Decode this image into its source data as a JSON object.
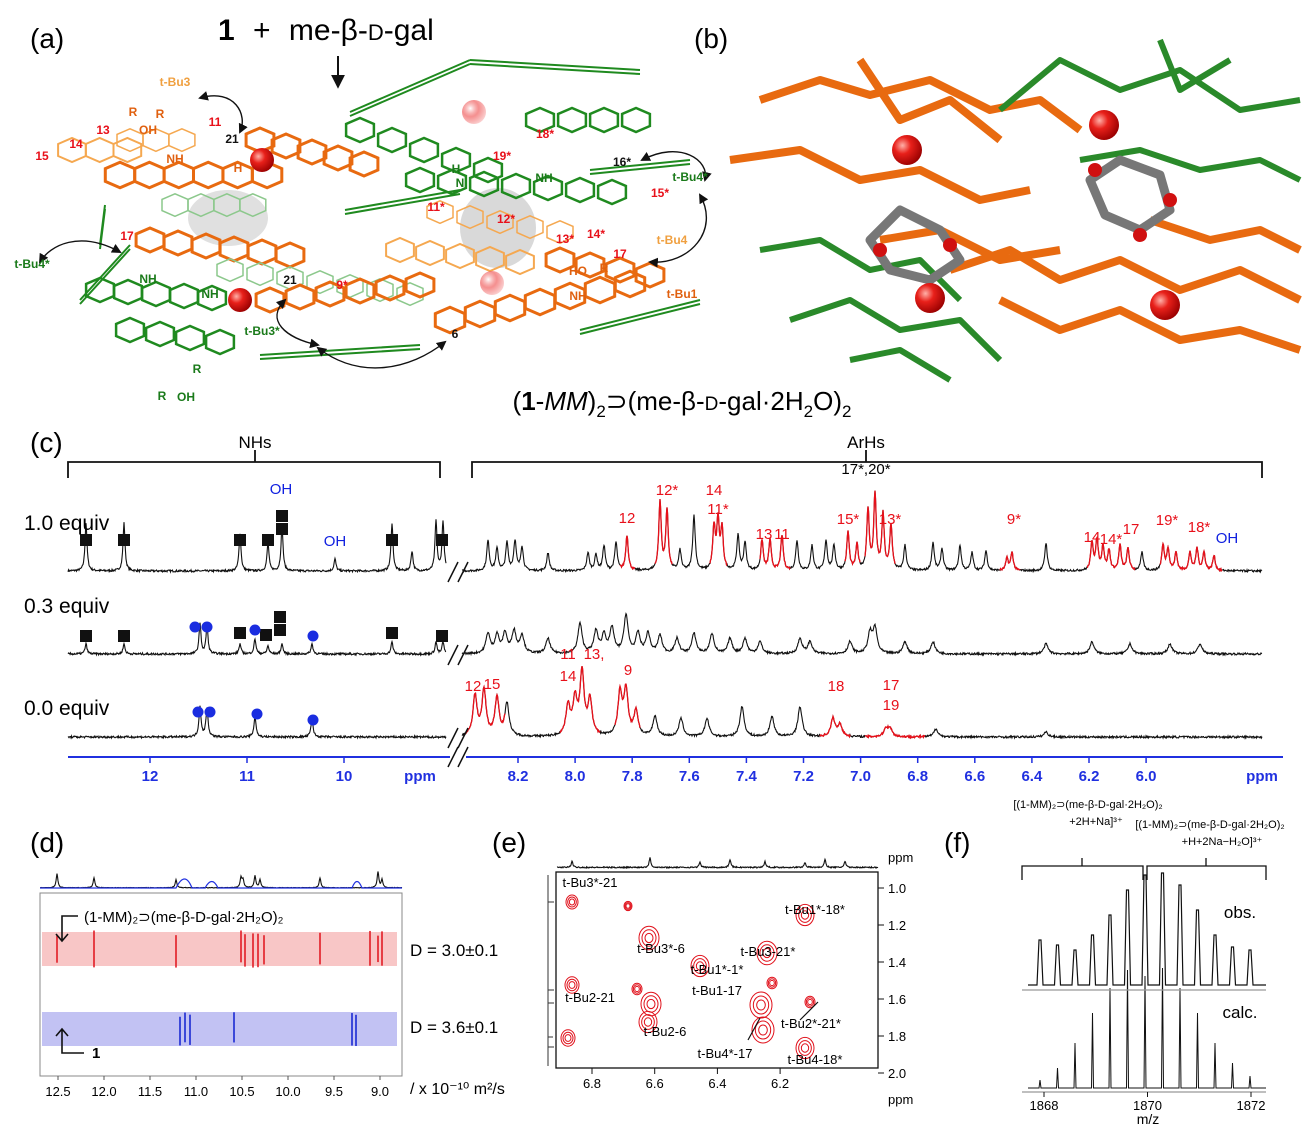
{
  "panel_a": {
    "label": "(a)",
    "title_compound": "1",
    "title_plus": "+",
    "title_guest_pre": "me-β-",
    "title_guest_d": "D",
    "title_guest_post": "-gal",
    "atom_labels": [
      "t-Bu3",
      "R",
      "R",
      "OH",
      "11",
      "13",
      "14",
      "15",
      "21",
      "H",
      "NH",
      "17",
      "t-Bu4*",
      "NH",
      "NH",
      "21",
      "9*",
      "t-Bu3*",
      "6",
      "R",
      "R",
      "OH",
      "19*",
      "18*",
      "16*",
      "t-Bu4*",
      "15*",
      "NH",
      "N",
      "H",
      "11*",
      "12*",
      "13*",
      "14*",
      "t-Bu4",
      "17",
      "HO",
      "R",
      "NH",
      "t-Bu1"
    ]
  },
  "panel_b": {
    "label": "(b)"
  },
  "caption": {
    "open": "(",
    "compound": "1",
    "dash": "-",
    "mm": "MM",
    "close": ")",
    "sub1": "2",
    "guest": "⊃(me-β-",
    "d": "D",
    "gal": "-gal·2H",
    "sub2": "2",
    "o": "O)",
    "sub3": "2"
  },
  "panel_c": {
    "label": "(c)",
    "nh_group": "NHs",
    "arh_group": "ArHs",
    "arh_note": "17*,20*",
    "traces": [
      "1.0 equiv",
      "0.3 equiv",
      "0.0 equiv"
    ],
    "peak_labels": [
      "12",
      "12*",
      "14",
      "11*",
      "13",
      "11",
      "15*",
      "13*",
      "9*",
      "14",
      "14*",
      "17",
      "19*",
      "18*",
      "OH",
      "OH",
      "OH",
      "12",
      "15",
      "11",
      "13,",
      "14",
      "9",
      "18",
      "17",
      "19"
    ],
    "left_ticks": [
      "12",
      "11",
      "10"
    ],
    "left_unit": "ppm",
    "right_ticks": [
      "8.2",
      "8.0",
      "7.8",
      "7.6",
      "7.4",
      "7.2",
      "7.0",
      "6.8",
      "6.6",
      "6.4",
      "6.2",
      "6.0"
    ],
    "right_unit": "ppm"
  },
  "panel_d": {
    "label": "(d)",
    "complex_label": "(1-MM)₂⊃(me-β-D-gal·2H₂O)₂",
    "host_label": "1",
    "d_complex": "D = 3.0±0.1",
    "d_host": "D = 3.6±0.1",
    "unit": "/ x 10⁻¹⁰ m²/s",
    "x_ticks": [
      "12.5",
      "12.0",
      "11.5",
      "11.0",
      "10.5",
      "10.0",
      "9.5",
      "9.0"
    ]
  },
  "panel_e": {
    "label": "(e)",
    "top_unit": "ppm",
    "bottom_unit": "ppm",
    "y_ticks": [
      "1.0",
      "1.2",
      "1.4",
      "1.6",
      "1.8",
      "2.0"
    ],
    "x_ticks": [
      "6.8",
      "6.6",
      "6.4",
      "6.2"
    ],
    "cross_peaks": [
      "t-Bu3*-21",
      "t-Bu3*-6",
      "t-Bu1*-1*",
      "t-Bu1*-18*",
      "t-Bu3-21*",
      "t-Bu1-17",
      "t-Bu2-21",
      "t-Bu2-6",
      "t-Bu2*-21*",
      "t-Bu4*-17",
      "t-Bu4-18*"
    ]
  },
  "panel_f": {
    "label": "(f)",
    "ion_1": [
      "[(1-MM)₂⊃(me-β-D-gal·2H₂O)₂",
      "+2H+Na]³⁺"
    ],
    "ion_2": [
      "[(1-MM)₂⊃(me-β-D-gal·2H₂O)₂",
      "+H+2Na−H₂O]³⁺"
    ],
    "observed": "obs.",
    "calculated": "calc.",
    "x_ticks": [
      "1868",
      "1870",
      "1872"
    ],
    "x_label": "m/z"
  }
}
